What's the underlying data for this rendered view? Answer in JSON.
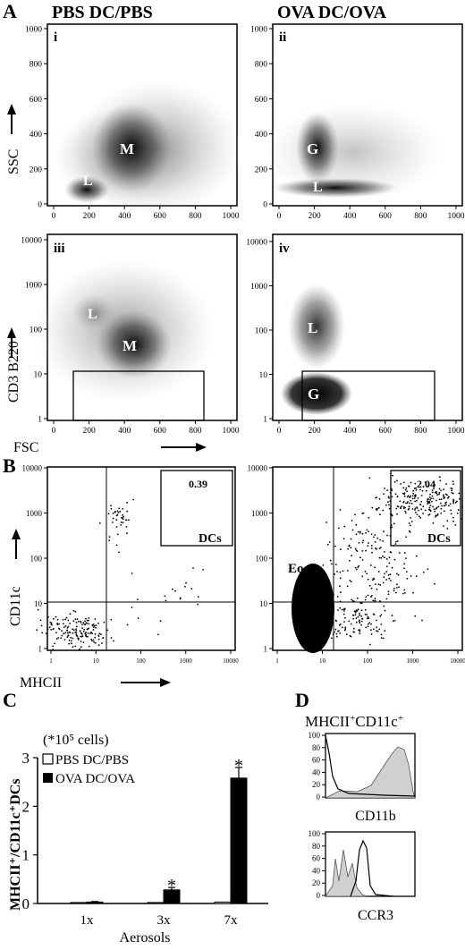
{
  "panel_letters": {
    "a": "A",
    "b": "B",
    "c": "C",
    "d": "D"
  },
  "panel_a": {
    "col_left_title": "PBS DC/PBS",
    "col_right_title": "OVA DC/OVA",
    "sub_labels": [
      "i",
      "ii",
      "iii",
      "iv"
    ],
    "y_label_top": "SSC",
    "y_label_bottom": "CD3 B220",
    "x_label": "FSC",
    "lin_ticks": [
      "0",
      "200",
      "400",
      "600",
      "800",
      "1000"
    ],
    "log_ticks": [
      "1",
      "10",
      "100",
      "1000",
      "10000"
    ],
    "pop_labels": {
      "i": [
        "L",
        "M"
      ],
      "ii": [
        "L",
        "G"
      ],
      "iii": [
        "L",
        "M"
      ],
      "iv": [
        "L",
        "G"
      ]
    }
  },
  "panel_b": {
    "y_label": "CD11c",
    "x_label": "MHCII",
    "log_ticks": [
      "1",
      "10",
      "100",
      "1000",
      "10000"
    ],
    "gate_label": "DCs",
    "eo_label": "Eo",
    "left_percent": "0.39",
    "right_percent": "2.04"
  },
  "panel_d": {
    "title": "MHCII",
    "title_sup1": "+",
    "title_mid": "CD11c",
    "title_sup2": "+",
    "y_ticks": [
      "0",
      "20",
      "40",
      "60",
      "80",
      "100"
    ],
    "top_xlabel": "CD11b",
    "bottom_xlabel": "CCR3"
  },
  "chart_data": {
    "type": "bar",
    "title": "",
    "annotation": "(*10⁵ cells)",
    "ylabel": "MHCII⁺/CD11c⁺DCs",
    "xlabel": "Aerosols",
    "categories": [
      "1x",
      "3x",
      "7x"
    ],
    "ylim": [
      0,
      3
    ],
    "yticks": [
      "0",
      "1",
      "2",
      "3"
    ],
    "series": [
      {
        "name": "PBS DC/PBS",
        "color": "#ffffff",
        "values": [
          0.02,
          0.02,
          0.03
        ]
      },
      {
        "name": "OVA DC/OVA",
        "color": "#000000",
        "values": [
          0.03,
          0.28,
          2.58
        ],
        "errors": [
          0.01,
          0.05,
          0.22
        ]
      }
    ],
    "significance": [
      "",
      "*",
      "*"
    ],
    "legend": "top-left"
  }
}
